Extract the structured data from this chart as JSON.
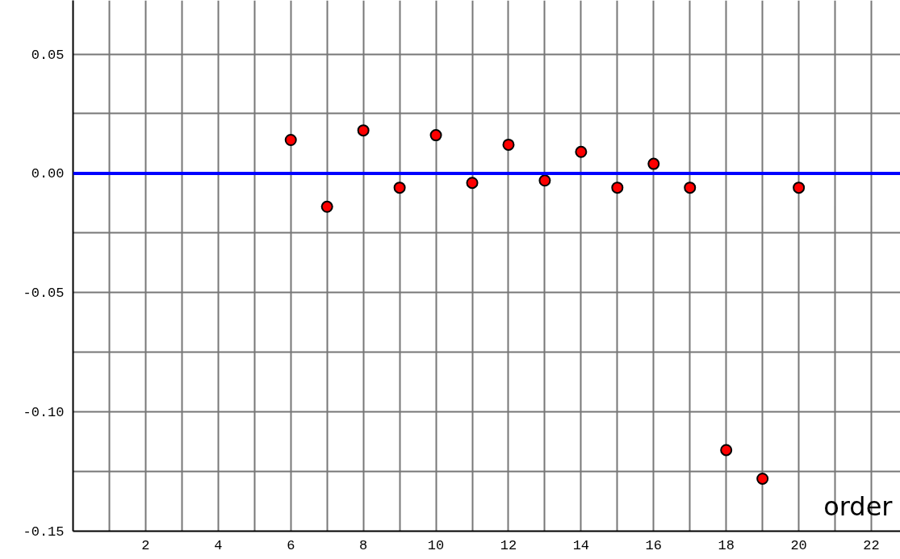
{
  "chart_data": {
    "type": "scatter",
    "xlabel": "order",
    "x": [
      6,
      7,
      8,
      9,
      10,
      11,
      12,
      13,
      14,
      15,
      16,
      17,
      18,
      19,
      20
    ],
    "series": [
      {
        "color": "#ff0000",
        "values": [
          0.014,
          -0.014,
          0.018,
          -0.006,
          0.016,
          -0.004,
          0.012,
          -0.003,
          0.009,
          -0.006,
          0.004,
          -0.006,
          -0.116,
          -0.128,
          -0.006
        ]
      }
    ],
    "marker": "circle",
    "xlim": [
      0,
      22.8
    ],
    "ylim": [
      -0.15,
      0.0725
    ],
    "xticks": [
      {
        "value": 1,
        "label": null
      },
      2,
      {
        "value": 3,
        "label": null
      },
      4,
      {
        "value": 5,
        "label": null
      },
      6,
      {
        "value": 7,
        "label": null
      },
      8,
      {
        "value": 9,
        "label": null
      },
      10,
      {
        "value": 11,
        "label": null
      },
      12,
      {
        "value": 13,
        "label": null
      },
      14,
      {
        "value": 15,
        "label": null
      },
      16,
      {
        "value": 17,
        "label": null
      },
      18,
      {
        "value": 19,
        "label": null
      },
      20,
      {
        "value": 21,
        "label": null
      },
      22
    ],
    "yticks": [
      {
        "value": -0.15,
        "label": "-0.15"
      },
      {
        "value": -0.125,
        "label": null
      },
      {
        "value": -0.1,
        "label": "-0.10"
      },
      {
        "value": -0.075,
        "label": null
      },
      {
        "value": -0.05,
        "label": "-0.05"
      },
      {
        "value": -0.025,
        "label": null
      },
      {
        "value": 0,
        "label": "0.00"
      },
      {
        "value": 0.025,
        "label": null
      },
      {
        "value": 0.05,
        "label": "0.05"
      }
    ],
    "ref_lines": [
      {
        "axis": "y",
        "value": 0,
        "color": "#0000ff"
      }
    ],
    "grid": true
  }
}
